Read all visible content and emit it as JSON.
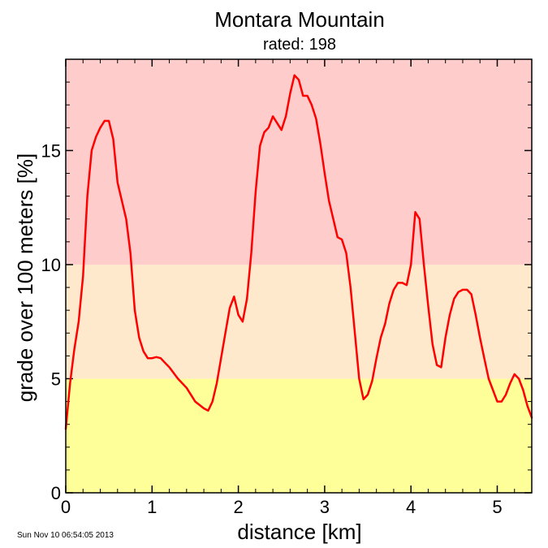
{
  "chart_data": {
    "type": "line",
    "title": "Montara Mountain",
    "subtitle": "rated: 198",
    "xlabel": "distance [km]",
    "ylabel": "grade over 100 meters [%]",
    "xlim": [
      0,
      5.4
    ],
    "ylim": [
      0,
      19
    ],
    "x_ticks": [
      0,
      1,
      2,
      3,
      4,
      5
    ],
    "y_ticks": [
      0,
      5,
      10,
      15
    ],
    "bands": [
      {
        "from": 0,
        "to": 5,
        "color": "#ffff99"
      },
      {
        "from": 5,
        "to": 10,
        "color": "#ffe9cc"
      },
      {
        "from": 10,
        "to": 19,
        "color": "#ffcccc"
      }
    ],
    "series": [
      {
        "color": "#ff0000",
        "x": [
          0.0,
          0.05,
          0.1,
          0.15,
          0.2,
          0.25,
          0.3,
          0.35,
          0.4,
          0.45,
          0.5,
          0.55,
          0.6,
          0.65,
          0.7,
          0.75,
          0.8,
          0.85,
          0.9,
          0.95,
          1.0,
          1.05,
          1.1,
          1.15,
          1.2,
          1.3,
          1.4,
          1.5,
          1.6,
          1.65,
          1.7,
          1.75,
          1.8,
          1.85,
          1.9,
          1.95,
          2.0,
          2.05,
          2.1,
          2.15,
          2.2,
          2.25,
          2.3,
          2.35,
          2.4,
          2.45,
          2.5,
          2.55,
          2.6,
          2.65,
          2.7,
          2.75,
          2.8,
          2.85,
          2.9,
          2.95,
          3.0,
          3.05,
          3.1,
          3.15,
          3.2,
          3.25,
          3.3,
          3.35,
          3.4,
          3.45,
          3.5,
          3.55,
          3.6,
          3.65,
          3.7,
          3.75,
          3.8,
          3.85,
          3.9,
          3.95,
          4.0,
          4.05,
          4.1,
          4.15,
          4.2,
          4.25,
          4.3,
          4.35,
          4.4,
          4.45,
          4.5,
          4.55,
          4.6,
          4.65,
          4.7,
          4.75,
          4.8,
          4.85,
          4.9,
          4.95,
          5.0,
          5.05,
          5.1,
          5.15,
          5.2,
          5.25,
          5.3,
          5.35,
          5.4
        ],
        "values": [
          2.8,
          4.8,
          6.3,
          7.5,
          9.5,
          13.0,
          15.0,
          15.6,
          16.0,
          16.3,
          16.3,
          15.5,
          13.6,
          12.8,
          12.0,
          10.5,
          8.0,
          6.8,
          6.2,
          5.9,
          5.9,
          5.95,
          5.9,
          5.7,
          5.5,
          5.0,
          4.6,
          4.0,
          3.7,
          3.6,
          4.0,
          4.8,
          5.9,
          7.0,
          8.1,
          8.6,
          7.8,
          7.5,
          8.5,
          10.5,
          13.2,
          15.2,
          15.8,
          16.0,
          16.5,
          16.2,
          15.9,
          16.5,
          17.5,
          18.3,
          18.1,
          17.4,
          17.4,
          17.0,
          16.4,
          15.3,
          14.0,
          12.8,
          12.0,
          11.2,
          11.1,
          10.5,
          9.0,
          7.0,
          5.0,
          4.1,
          4.3,
          4.9,
          5.9,
          6.8,
          7.4,
          8.3,
          8.9,
          9.2,
          9.2,
          9.1,
          10.0,
          12.3,
          12.0,
          10.0,
          8.2,
          6.5,
          5.6,
          5.5,
          6.8,
          7.8,
          8.5,
          8.8,
          8.9,
          8.9,
          8.7,
          7.8,
          6.8,
          5.9,
          5.0,
          4.5,
          4.0,
          4.0,
          4.3,
          4.8,
          5.2,
          5.0,
          4.5,
          3.8,
          3.3
        ]
      }
    ]
  },
  "footer": {
    "timestamp": "Sun Nov 10 06:54:05 2013"
  }
}
